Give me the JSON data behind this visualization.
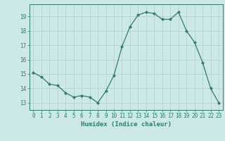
{
  "x": [
    0,
    1,
    2,
    3,
    4,
    5,
    6,
    7,
    8,
    9,
    10,
    11,
    12,
    13,
    14,
    15,
    16,
    17,
    18,
    19,
    20,
    21,
    22,
    23
  ],
  "y": [
    15.1,
    14.8,
    14.3,
    14.2,
    13.7,
    13.4,
    13.5,
    13.4,
    13.0,
    13.8,
    14.9,
    16.9,
    18.3,
    19.1,
    19.3,
    19.2,
    18.8,
    18.8,
    19.3,
    18.0,
    17.2,
    15.8,
    14.0,
    13.0
  ],
  "xlim": [
    -0.5,
    23.5
  ],
  "ylim": [
    12.5,
    19.85
  ],
  "yticks": [
    13,
    14,
    15,
    16,
    17,
    18,
    19
  ],
  "xticks": [
    0,
    1,
    2,
    3,
    4,
    5,
    6,
    7,
    8,
    9,
    10,
    11,
    12,
    13,
    14,
    15,
    16,
    17,
    18,
    19,
    20,
    21,
    22,
    23
  ],
  "xlabel": "Humidex (Indice chaleur)",
  "line_color": "#2e7d6e",
  "marker": "D",
  "marker_size": 2.0,
  "bg_color": "#cce8e8",
  "grid_color_major": "#b0cccc",
  "grid_color_minor": "#c8e0e0",
  "axis_color": "#2e7d6e",
  "tick_color": "#2e7d6e",
  "label_color": "#2e7d6e",
  "tick_fontsize": 5.5,
  "xlabel_fontsize": 6.5
}
